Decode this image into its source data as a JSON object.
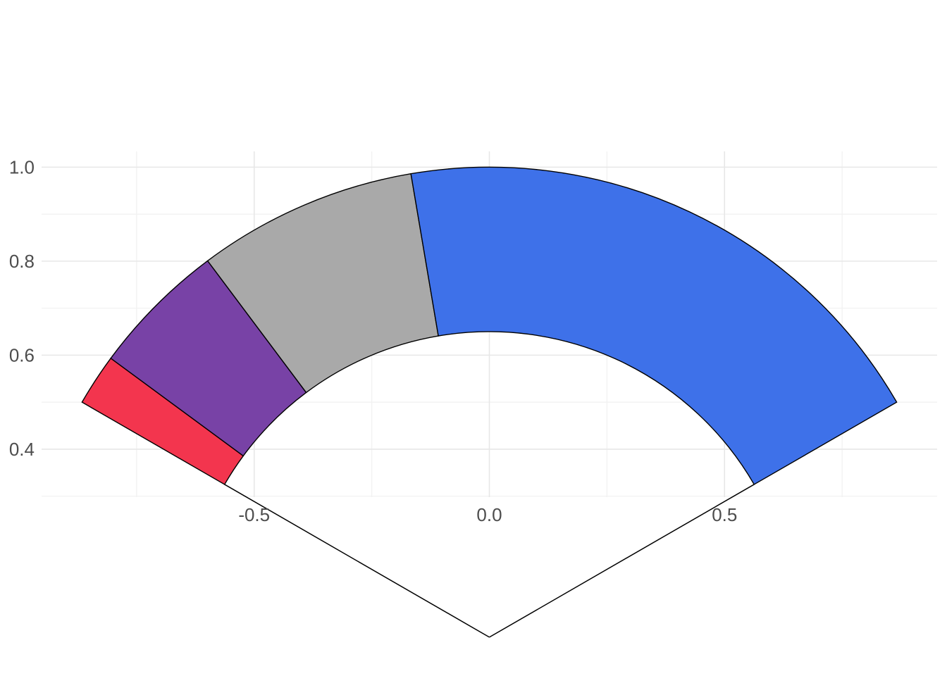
{
  "figure": {
    "title": "",
    "background_color": "#FFFFFF"
  },
  "chart_data": {
    "type": "gauge",
    "title": "",
    "xlabel": "",
    "ylabel": "",
    "grid": true,
    "legend": false,
    "angle_start_deg": 150,
    "angle_end_deg": 30,
    "total_span_deg": 120,
    "inner_radius": 0.65,
    "outer_radius": 1.0,
    "radial_edge_lines_to_center": true,
    "segments": [
      {
        "name": "red",
        "color": "#F3354E",
        "start_deg": 150.0,
        "end_deg": 143.6,
        "span_deg": 6.4,
        "share": 0.053
      },
      {
        "name": "purple",
        "color": "#7842A6",
        "start_deg": 143.6,
        "end_deg": 126.8,
        "span_deg": 16.8,
        "share": 0.14
      },
      {
        "name": "gray",
        "color": "#A9A9A9",
        "start_deg": 126.8,
        "end_deg": 99.6,
        "span_deg": 27.2,
        "share": 0.227
      },
      {
        "name": "blue",
        "color": "#3E71E9",
        "start_deg": 99.6,
        "end_deg": 30.0,
        "span_deg": 69.6,
        "share": 0.58
      }
    ],
    "x_axis": {
      "tick_labels": [
        "-0.5",
        "0.0",
        "0.5"
      ],
      "tick_values": [
        -0.5,
        0.0,
        0.5
      ],
      "minor_values": [
        -0.75,
        -0.25,
        0.25,
        0.75
      ],
      "range": [
        -0.952,
        0.952
      ]
    },
    "y_axis": {
      "tick_labels": [
        "0.4",
        "0.6",
        "0.8",
        "1.0"
      ],
      "tick_values": [
        0.4,
        0.6,
        0.8,
        1.0
      ],
      "minor_values": [
        0.3,
        0.5,
        0.7,
        0.9
      ],
      "range": [
        0.291,
        1.0335
      ]
    },
    "styles": {
      "segment_border_color": "#000000",
      "segment_border_width": 1.4,
      "grid_major_color": "#E7E7E7",
      "grid_minor_color": "#F1F1F1",
      "axis_text_color": "#4D4D4D",
      "background_color": "#FFFFFF"
    }
  }
}
